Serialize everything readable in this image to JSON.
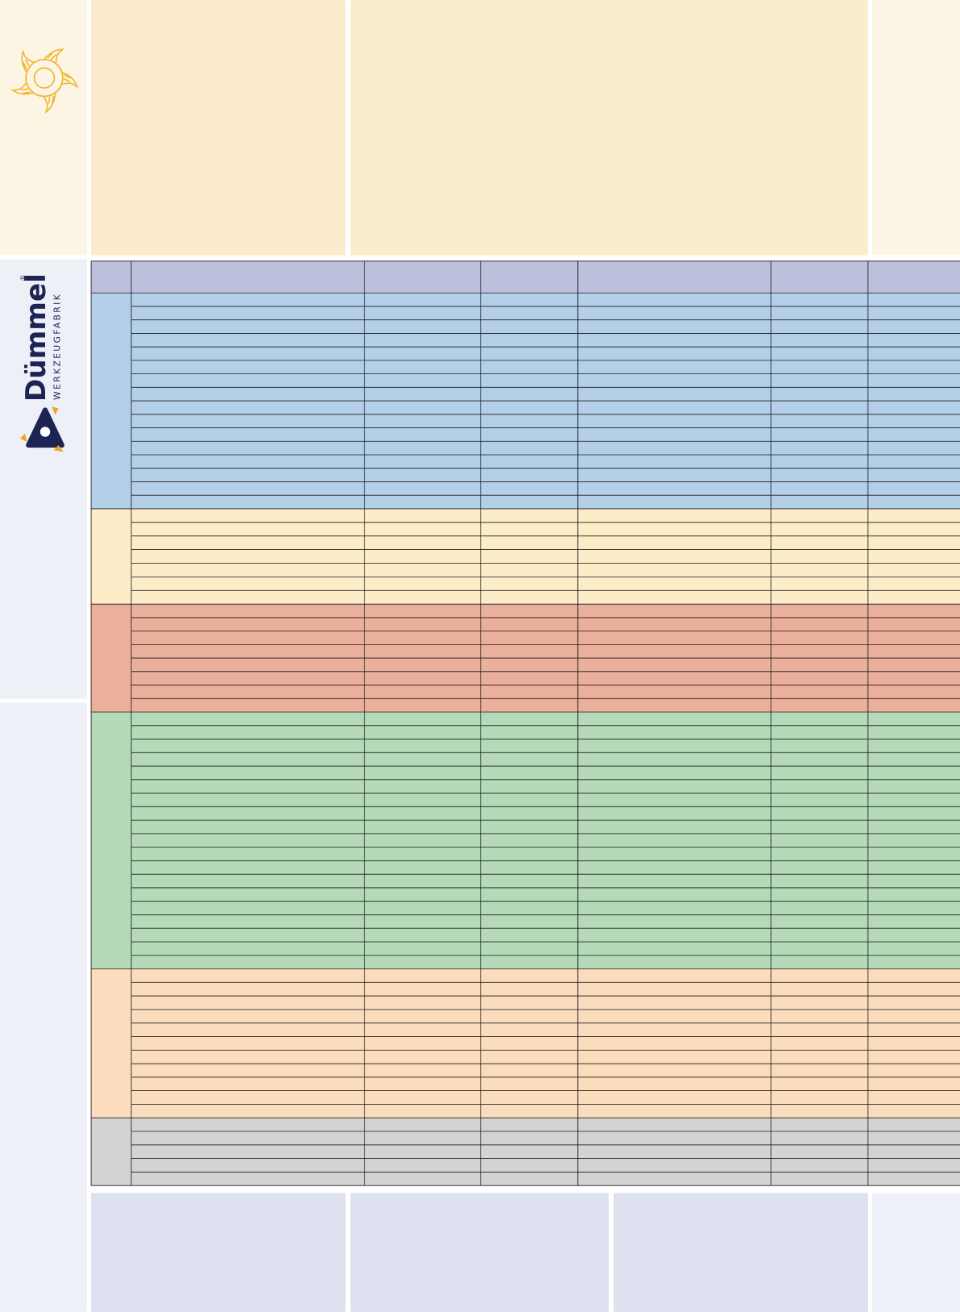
{
  "brand": {
    "name": "Dümmel",
    "registered": "®",
    "tagline": "WERKZEUGFABRIK"
  }
}
